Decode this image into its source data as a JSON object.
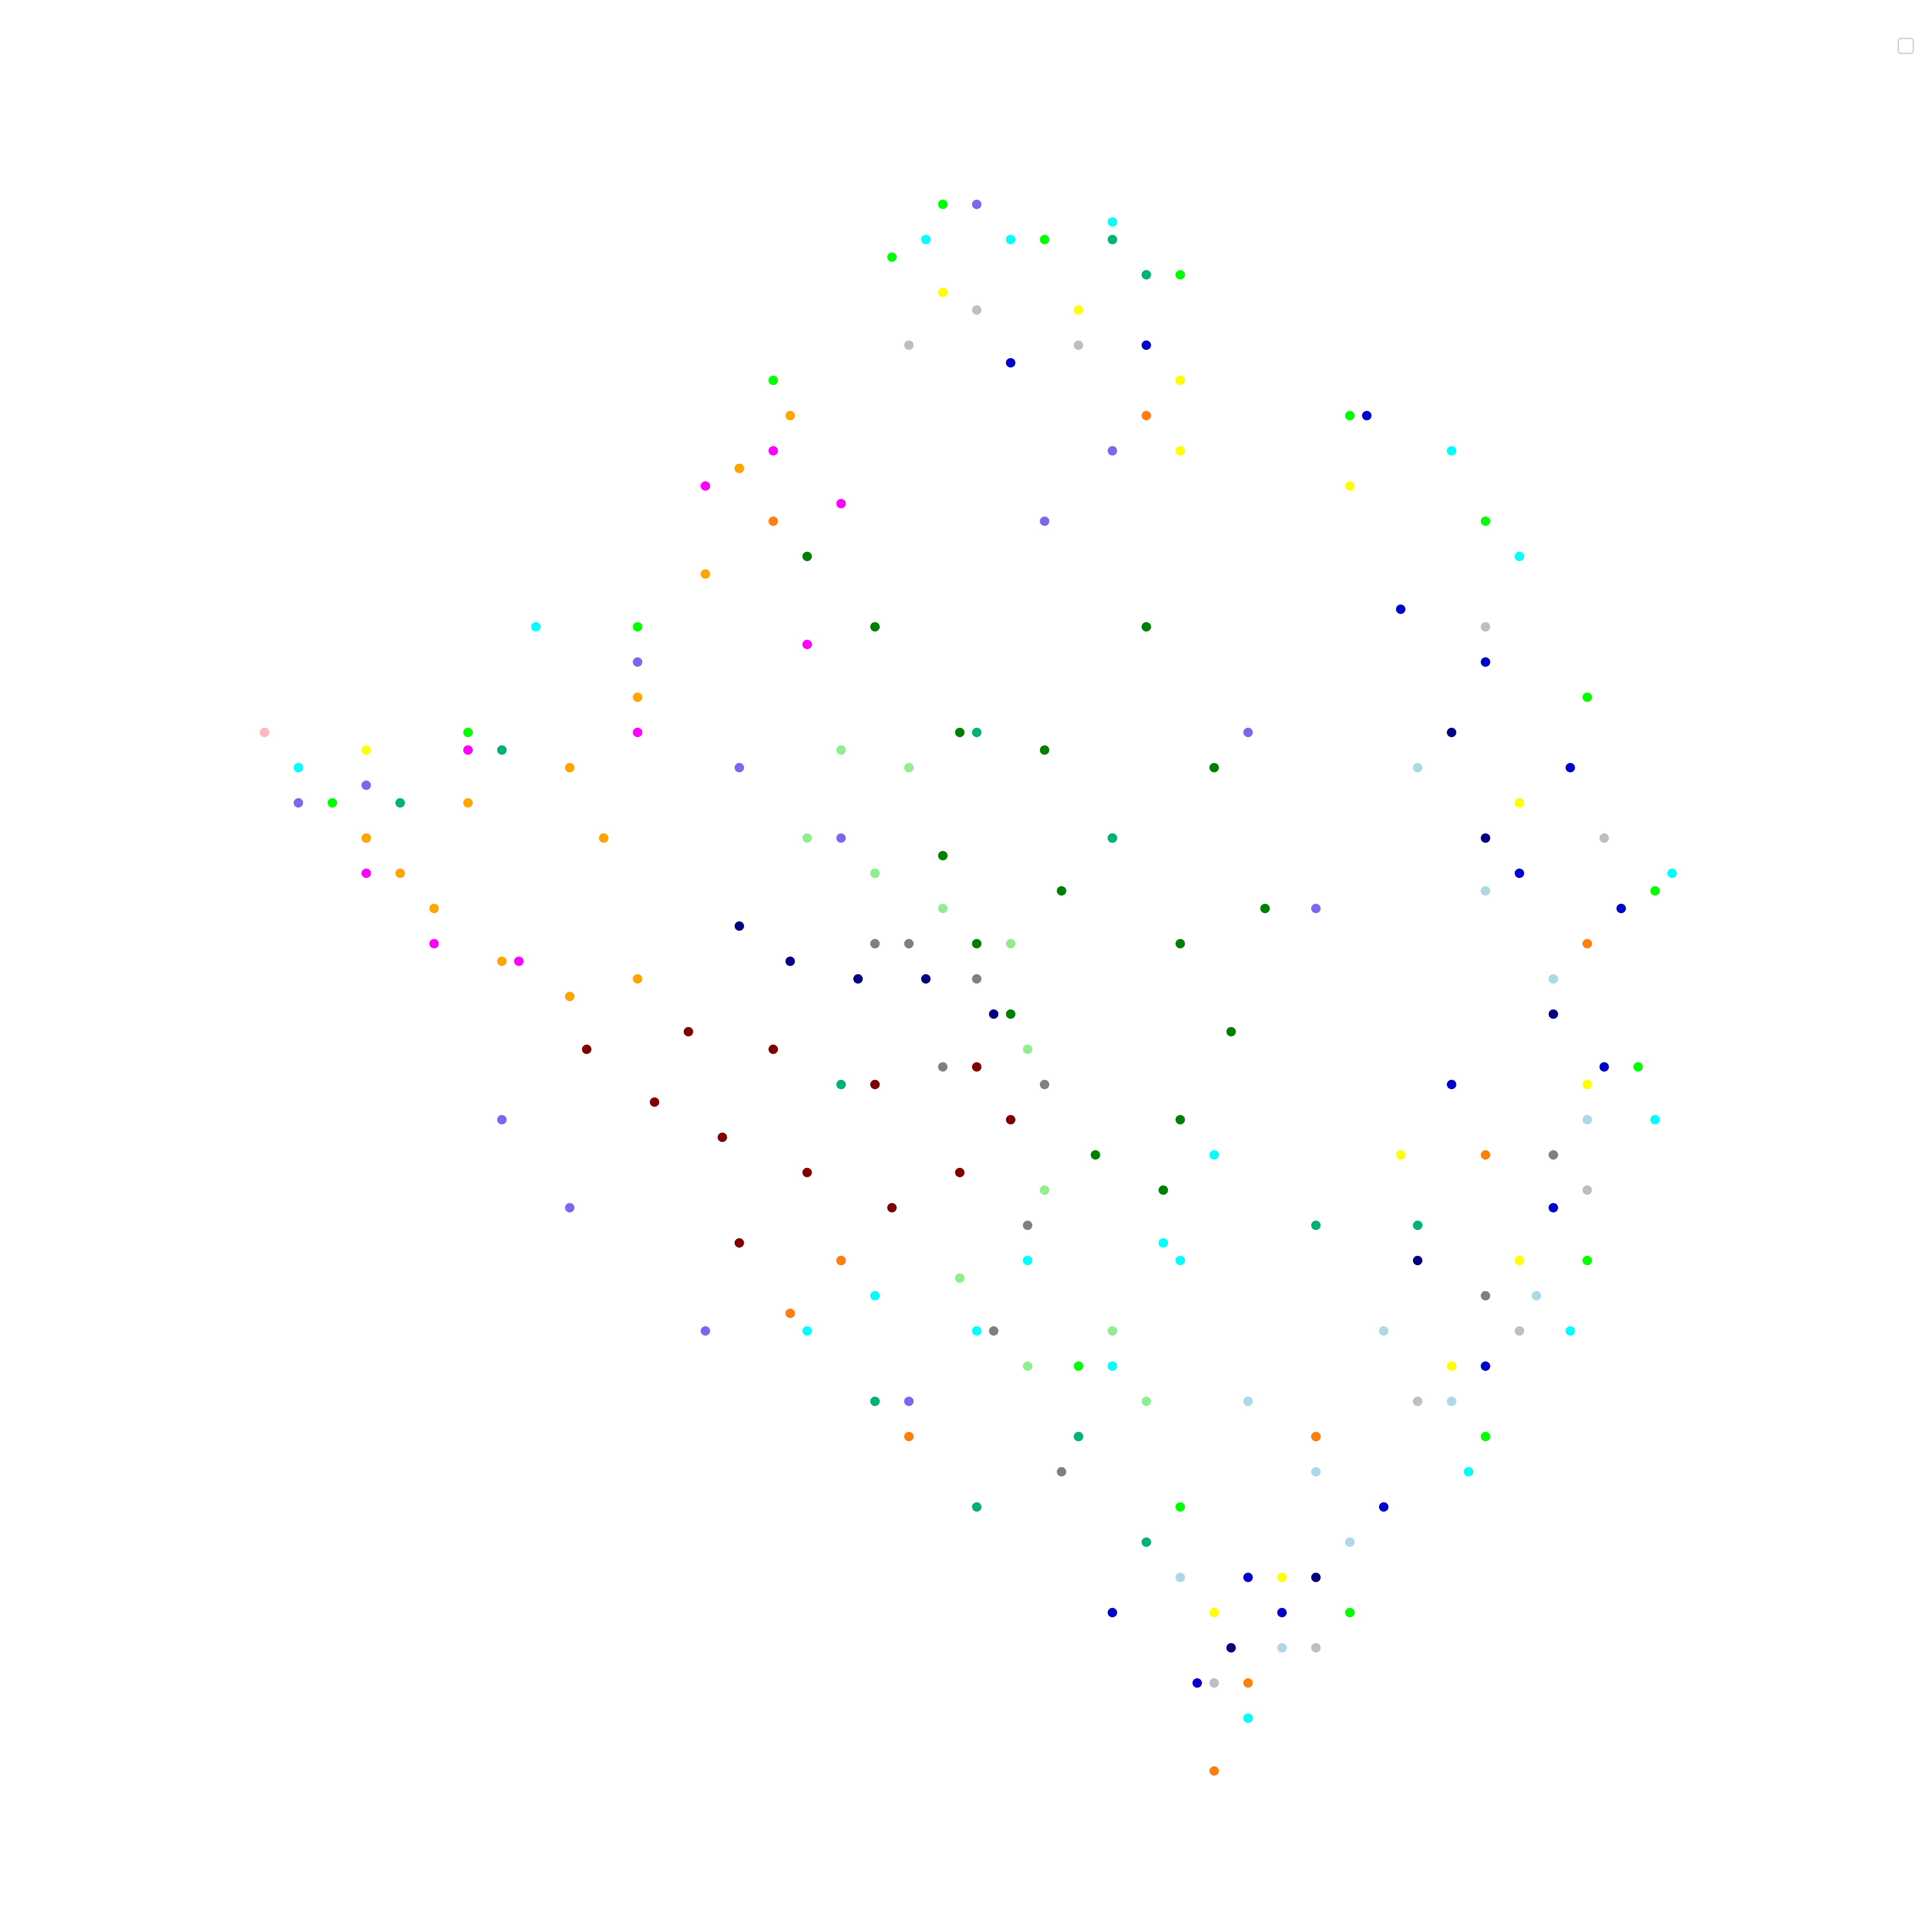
{
  "chart_data": {
    "type": "scatter",
    "title": "",
    "xlabel": "",
    "ylabel": "",
    "axes_visible": false,
    "grid": false,
    "legend": {
      "placement": "top-right",
      "entries": []
    },
    "xlim": [
      0,
      100
    ],
    "ylim": [
      0,
      100
    ],
    "colors": {
      "darkgreen": "#008000",
      "maroon": "#800000",
      "orange": "#ffa500",
      "magenta": "#ff00ff",
      "blue": "#0000cd",
      "navy": "#000080",
      "lightgreen": "#90ee90",
      "lime": "#00ff00",
      "cyan": "#00ffff",
      "lightblue": "#add8e6",
      "gray": "#808080",
      "silver": "#bfbfbf",
      "yellow": "#ffff00",
      "slateblue": "#7b68ee",
      "seagreen": "#00b371",
      "darkorange": "#ff7f0e",
      "pink": "#ffb6c1"
    },
    "series": [
      {
        "color": "darkgreen",
        "values": [
          [
            49,
            36
          ],
          [
            54,
            37
          ],
          [
            58,
            42
          ],
          [
            62,
            48
          ],
          [
            65,
            53
          ],
          [
            62,
            58
          ],
          [
            57,
            60
          ],
          [
            52,
            52
          ],
          [
            48,
            43
          ],
          [
            44,
            30
          ],
          [
            40,
            26
          ],
          [
            36,
            21
          ],
          [
            60,
            30
          ],
          [
            64,
            38
          ],
          [
            55,
            45
          ],
          [
            50,
            48
          ],
          [
            67,
            46
          ],
          [
            61,
            62
          ]
        ]
      },
      {
        "color": "maroon",
        "values": [
          [
            27,
            54
          ],
          [
            31,
            57
          ],
          [
            35,
            59
          ],
          [
            40,
            61
          ],
          [
            45,
            63
          ],
          [
            49,
            61
          ],
          [
            52,
            58
          ],
          [
            50,
            55
          ],
          [
            44,
            56
          ],
          [
            38,
            54
          ],
          [
            33,
            53
          ],
          [
            42,
            66
          ],
          [
            36,
            65
          ]
        ]
      },
      {
        "color": "orange",
        "values": [
          [
            14,
            42
          ],
          [
            18,
            46
          ],
          [
            22,
            49
          ],
          [
            26,
            51
          ],
          [
            30,
            50
          ],
          [
            28,
            42
          ],
          [
            30,
            34
          ],
          [
            34,
            27
          ],
          [
            36,
            21
          ],
          [
            39,
            18
          ],
          [
            26,
            38
          ],
          [
            20,
            40
          ],
          [
            16,
            44
          ]
        ]
      },
      {
        "color": "magenta",
        "values": [
          [
            14,
            44
          ],
          [
            18,
            48
          ],
          [
            23,
            49
          ],
          [
            34,
            22
          ],
          [
            38,
            20
          ],
          [
            40,
            31
          ],
          [
            30,
            36
          ],
          [
            20,
            37
          ],
          [
            42,
            23
          ]
        ]
      },
      {
        "color": "blue",
        "values": [
          [
            75,
            29
          ],
          [
            80,
            32
          ],
          [
            85,
            38
          ],
          [
            88,
            46
          ],
          [
            87,
            55
          ],
          [
            84,
            63
          ],
          [
            80,
            72
          ],
          [
            74,
            80
          ],
          [
            68,
            86
          ],
          [
            63,
            90
          ],
          [
            70,
            76
          ],
          [
            78,
            56
          ],
          [
            82,
            44
          ],
          [
            73,
            18
          ],
          [
            66,
            84
          ],
          [
            58,
            86
          ],
          [
            60,
            14
          ],
          [
            52,
            15
          ]
        ]
      },
      {
        "color": "navy",
        "values": [
          [
            36,
            47
          ],
          [
            39,
            49
          ],
          [
            43,
            50
          ],
          [
            47,
            50
          ],
          [
            51,
            52
          ],
          [
            80,
            42
          ],
          [
            84,
            52
          ],
          [
            76,
            66
          ],
          [
            70,
            84
          ],
          [
            65,
            88
          ],
          [
            78,
            36
          ]
        ]
      },
      {
        "color": "lightgreen",
        "values": [
          [
            40,
            42
          ],
          [
            44,
            44
          ],
          [
            48,
            46
          ],
          [
            52,
            48
          ],
          [
            53,
            54
          ],
          [
            54,
            62
          ],
          [
            49,
            67
          ],
          [
            53,
            72
          ],
          [
            56,
            76
          ],
          [
            60,
            74
          ],
          [
            58,
            70
          ],
          [
            46,
            38
          ],
          [
            42,
            37
          ]
        ]
      },
      {
        "color": "lime",
        "values": [
          [
            48,
            6
          ],
          [
            54,
            8
          ],
          [
            62,
            10
          ],
          [
            72,
            18
          ],
          [
            80,
            24
          ],
          [
            86,
            34
          ],
          [
            90,
            45
          ],
          [
            89,
            55
          ],
          [
            86,
            66
          ],
          [
            80,
            76
          ],
          [
            72,
            86
          ],
          [
            66,
            92
          ],
          [
            62,
            80
          ],
          [
            56,
            72
          ],
          [
            30,
            30
          ],
          [
            20,
            36
          ],
          [
            12,
            40
          ],
          [
            38,
            16
          ],
          [
            45,
            9
          ]
        ]
      },
      {
        "color": "cyan",
        "values": [
          [
            47,
            8
          ],
          [
            52,
            8
          ],
          [
            58,
            7
          ],
          [
            78,
            20
          ],
          [
            82,
            26
          ],
          [
            91,
            44
          ],
          [
            90,
            58
          ],
          [
            85,
            70
          ],
          [
            79,
            78
          ],
          [
            66,
            92
          ],
          [
            62,
            66
          ],
          [
            58,
            72
          ],
          [
            53,
            66
          ],
          [
            50,
            70
          ],
          [
            44,
            68
          ],
          [
            40,
            70
          ],
          [
            24,
            30
          ],
          [
            10,
            38
          ],
          [
            64,
            60
          ],
          [
            61,
            65
          ]
        ]
      },
      {
        "color": "lightblue",
        "values": [
          [
            76,
            38
          ],
          [
            80,
            45
          ],
          [
            84,
            50
          ],
          [
            86,
            58
          ],
          [
            83,
            68
          ],
          [
            78,
            74
          ],
          [
            72,
            82
          ],
          [
            68,
            88
          ],
          [
            74,
            70
          ],
          [
            70,
            78
          ],
          [
            62,
            84
          ],
          [
            66,
            74
          ]
        ]
      },
      {
        "color": "gray",
        "values": [
          [
            46,
            48
          ],
          [
            50,
            50
          ],
          [
            54,
            56
          ],
          [
            53,
            64
          ],
          [
            51,
            70
          ],
          [
            55,
            78
          ],
          [
            60,
            82
          ],
          [
            48,
            55
          ],
          [
            44,
            48
          ],
          [
            84,
            60
          ],
          [
            80,
            68
          ]
        ]
      },
      {
        "color": "silver",
        "values": [
          [
            46,
            14
          ],
          [
            50,
            12
          ],
          [
            56,
            14
          ],
          [
            62,
            16
          ],
          [
            80,
            30
          ],
          [
            87,
            42
          ],
          [
            86,
            62
          ],
          [
            76,
            74
          ],
          [
            70,
            88
          ],
          [
            64,
            90
          ],
          [
            82,
            70
          ]
        ]
      },
      {
        "color": "yellow",
        "values": [
          [
            48,
            11
          ],
          [
            56,
            12
          ],
          [
            62,
            16
          ],
          [
            72,
            22
          ],
          [
            82,
            40
          ],
          [
            86,
            56
          ],
          [
            82,
            66
          ],
          [
            78,
            72
          ],
          [
            68,
            84
          ],
          [
            64,
            86
          ],
          [
            14,
            37
          ],
          [
            62,
            20
          ],
          [
            75,
            60
          ]
        ]
      },
      {
        "color": "slateblue",
        "values": [
          [
            14,
            39
          ],
          [
            10,
            40
          ],
          [
            22,
            58
          ],
          [
            26,
            63
          ],
          [
            34,
            70
          ],
          [
            46,
            74
          ],
          [
            50,
            6
          ],
          [
            58,
            20
          ],
          [
            70,
            46
          ],
          [
            42,
            42
          ],
          [
            36,
            38
          ],
          [
            30,
            32
          ],
          [
            54,
            24
          ],
          [
            66,
            36
          ]
        ]
      },
      {
        "color": "seagreen",
        "values": [
          [
            58,
            8
          ],
          [
            60,
            10
          ],
          [
            44,
            74
          ],
          [
            50,
            80
          ],
          [
            56,
            76
          ],
          [
            60,
            82
          ],
          [
            42,
            56
          ],
          [
            50,
            36
          ],
          [
            58,
            42
          ],
          [
            22,
            37
          ],
          [
            16,
            40
          ],
          [
            70,
            64
          ],
          [
            76,
            64
          ]
        ]
      },
      {
        "color": "darkorange",
        "values": [
          [
            46,
            76
          ],
          [
            42,
            66
          ],
          [
            38,
            24
          ],
          [
            60,
            18
          ],
          [
            70,
            76
          ],
          [
            66,
            90
          ],
          [
            64,
            95
          ],
          [
            80,
            60
          ],
          [
            86,
            48
          ],
          [
            39,
            69
          ]
        ]
      },
      {
        "color": "pink",
        "values": [
          [
            8,
            36
          ]
        ]
      }
    ]
  }
}
